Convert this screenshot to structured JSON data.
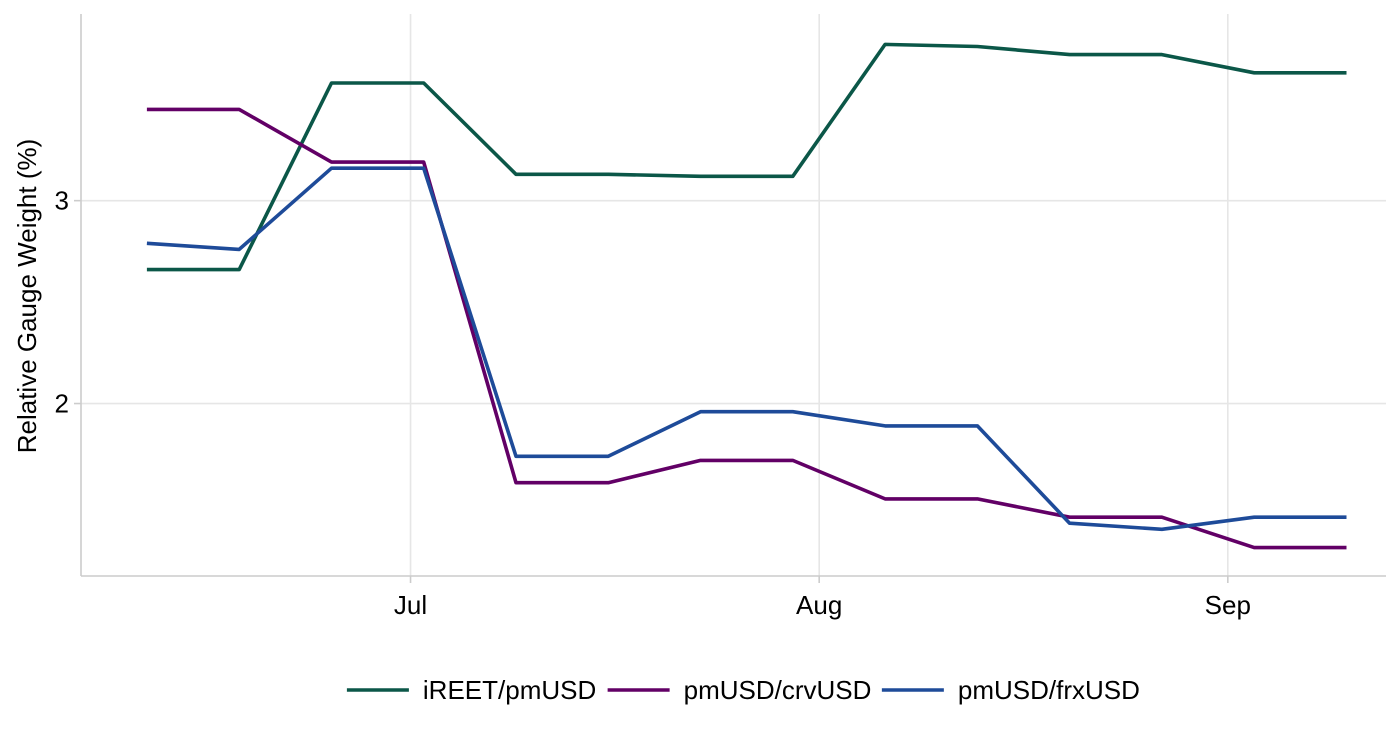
{
  "chart_data": {
    "type": "line",
    "title": "",
    "xlabel": "",
    "ylabel": "Relative Gauge Weight (%)",
    "x_tick_labels": [
      "Jul",
      "Aug",
      "Sep"
    ],
    "x_ticks": [
      "2025-07-01",
      "2025-08-01",
      "2025-09-01"
    ],
    "y_ticks": [
      2,
      3
    ],
    "y_tick_labels": [
      "2",
      "3"
    ],
    "xlim": [
      "2025-06-06",
      "2025-09-13"
    ],
    "ylim": [
      1.15,
      3.92
    ],
    "grid": true,
    "legend_position": "bottom",
    "x": [
      "2025-06-11",
      "2025-06-18",
      "2025-06-25",
      "2025-07-02",
      "2025-07-09",
      "2025-07-16",
      "2025-07-23",
      "2025-07-30",
      "2025-08-06",
      "2025-08-13",
      "2025-08-20",
      "2025-08-27",
      "2025-09-03",
      "2025-09-10"
    ],
    "series": [
      {
        "name": "iREET/pmUSD",
        "color": "#0b5748",
        "values": [
          2.66,
          2.66,
          3.58,
          3.58,
          3.13,
          3.13,
          3.12,
          3.12,
          3.77,
          3.76,
          3.72,
          3.72,
          3.63,
          3.63
        ]
      },
      {
        "name": "pmUSD/crvUSD",
        "color": "#620066",
        "values": [
          3.45,
          3.45,
          3.19,
          3.19,
          1.61,
          1.61,
          1.72,
          1.72,
          1.53,
          1.53,
          1.44,
          1.44,
          1.29,
          1.29
        ]
      },
      {
        "name": "pmUSD/frxUSD",
        "color": "#1e4b99",
        "values": [
          2.79,
          2.76,
          3.16,
          3.16,
          1.74,
          1.74,
          1.96,
          1.96,
          1.89,
          1.89,
          1.41,
          1.38,
          1.44,
          1.44
        ]
      }
    ]
  }
}
